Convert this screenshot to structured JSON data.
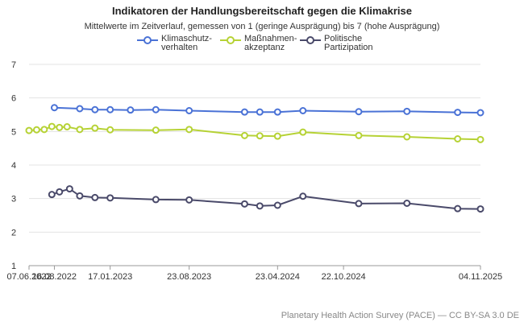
{
  "chart_data": {
    "type": "line",
    "title": "Indikatoren der Handlungsbereitschaft gegen die Klimakrise",
    "subtitle": "Mittelwerte im Zeitverlauf, gemessen von 1 (geringe Ausprägung) bis 7 (hohe Ausprägung)",
    "xlabel": "",
    "ylabel": "",
    "ylim": [
      1,
      7
    ],
    "yticks": [
      "1",
      "2",
      "3",
      "4",
      "5",
      "6",
      "7"
    ],
    "xlim": [
      "2022-06-07",
      "2025-11-04"
    ],
    "xticks": [
      {
        "date": "2022-06-07",
        "label": "07.06.2022"
      },
      {
        "date": "2022-08-16",
        "label": "16.08.2022"
      },
      {
        "date": "2023-01-17",
        "label": "17.01.2023"
      },
      {
        "date": "2023-08-23",
        "label": "23.08.2023"
      },
      {
        "date": "2024-04-23",
        "label": "23.04.2024"
      },
      {
        "date": "2024-10-22",
        "label": "22.10.2024"
      },
      {
        "date": "2025-11-04",
        "label": "04.11.2025"
      }
    ],
    "grid": true,
    "legend_position": "top",
    "series": [
      {
        "name": "Klimaschutz-\nverhalten",
        "color": "#4a72d6",
        "points": [
          {
            "x": "2022-08-16",
            "y": 5.71
          },
          {
            "x": "2022-10-25",
            "y": 5.68
          },
          {
            "x": "2022-12-06",
            "y": 5.65
          },
          {
            "x": "2023-01-17",
            "y": 5.65
          },
          {
            "x": "2023-03-14",
            "y": 5.64
          },
          {
            "x": "2023-05-23",
            "y": 5.65
          },
          {
            "x": "2023-08-23",
            "y": 5.62
          },
          {
            "x": "2024-01-23",
            "y": 5.58
          },
          {
            "x": "2024-03-05",
            "y": 5.58
          },
          {
            "x": "2024-04-23",
            "y": 5.58
          },
          {
            "x": "2024-07-02",
            "y": 5.62
          },
          {
            "x": "2024-12-03",
            "y": 5.59
          },
          {
            "x": "2025-04-15",
            "y": 5.6
          },
          {
            "x": "2025-09-02",
            "y": 5.57
          },
          {
            "x": "2025-11-04",
            "y": 5.56
          }
        ]
      },
      {
        "name": "Maßnahmen-\nakzeptanz",
        "color": "#b6d235",
        "points": [
          {
            "x": "2022-06-07",
            "y": 5.03
          },
          {
            "x": "2022-06-28",
            "y": 5.05
          },
          {
            "x": "2022-07-19",
            "y": 5.06
          },
          {
            "x": "2022-08-09",
            "y": 5.15
          },
          {
            "x": "2022-08-30",
            "y": 5.12
          },
          {
            "x": "2022-09-20",
            "y": 5.14
          },
          {
            "x": "2022-10-25",
            "y": 5.06
          },
          {
            "x": "2022-12-06",
            "y": 5.1
          },
          {
            "x": "2023-01-17",
            "y": 5.05
          },
          {
            "x": "2023-05-23",
            "y": 5.04
          },
          {
            "x": "2023-08-23",
            "y": 5.06
          },
          {
            "x": "2024-01-23",
            "y": 4.88
          },
          {
            "x": "2024-03-05",
            "y": 4.87
          },
          {
            "x": "2024-04-23",
            "y": 4.86
          },
          {
            "x": "2024-07-02",
            "y": 4.98
          },
          {
            "x": "2024-12-03",
            "y": 4.88
          },
          {
            "x": "2025-04-15",
            "y": 4.84
          },
          {
            "x": "2025-09-02",
            "y": 4.78
          },
          {
            "x": "2025-11-04",
            "y": 4.76
          }
        ]
      },
      {
        "name": "Politische\nPartizipation",
        "color": "#4a4a6a",
        "points": [
          {
            "x": "2022-08-09",
            "y": 3.12
          },
          {
            "x": "2022-08-30",
            "y": 3.2
          },
          {
            "x": "2022-09-27",
            "y": 3.29
          },
          {
            "x": "2022-10-25",
            "y": 3.08
          },
          {
            "x": "2022-12-06",
            "y": 3.03
          },
          {
            "x": "2023-01-17",
            "y": 3.02
          },
          {
            "x": "2023-05-23",
            "y": 2.97
          },
          {
            "x": "2023-08-23",
            "y": 2.96
          },
          {
            "x": "2024-01-23",
            "y": 2.84
          },
          {
            "x": "2024-03-05",
            "y": 2.78
          },
          {
            "x": "2024-04-23",
            "y": 2.8
          },
          {
            "x": "2024-07-02",
            "y": 3.07
          },
          {
            "x": "2024-12-03",
            "y": 2.85
          },
          {
            "x": "2025-04-15",
            "y": 2.86
          },
          {
            "x": "2025-09-02",
            "y": 2.7
          },
          {
            "x": "2025-11-04",
            "y": 2.69
          }
        ]
      }
    ]
  },
  "footer": {
    "source": "Planetary Health Action Survey (PACE) — CC BY-SA 3.0 DE"
  }
}
